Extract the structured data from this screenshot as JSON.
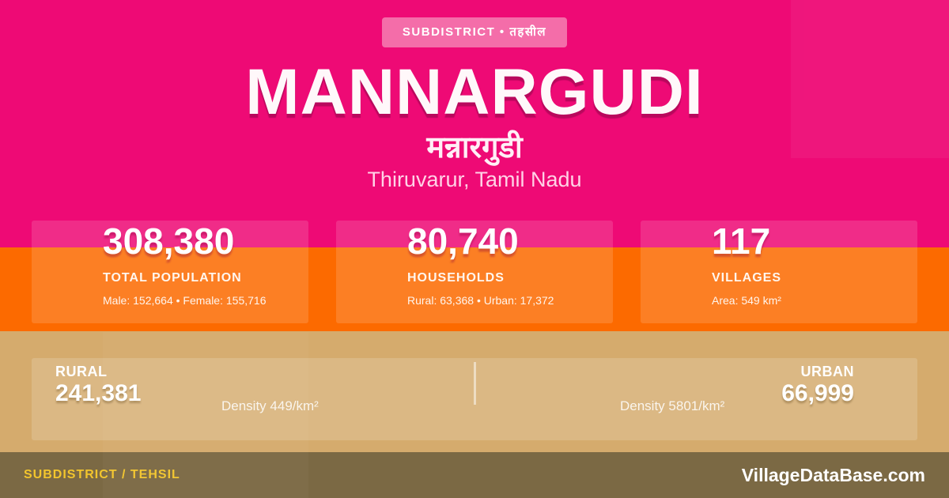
{
  "badge": {
    "label": "SUBDISTRICT • तहसील"
  },
  "header": {
    "title": "MANNARGUDI",
    "title_hindi": "मन्नारगुडी",
    "location": "Thiruvarur, Tamil Nadu"
  },
  "stats": [
    {
      "value": "308,380",
      "label": "TOTAL POPULATION",
      "detail": "Male: 152,664 • Female: 155,716"
    },
    {
      "value": "80,740",
      "label": "HOUSEHOLDS",
      "detail": "Rural: 63,368 • Urban: 17,372"
    },
    {
      "value": "117",
      "label": "VILLAGES",
      "detail": "Area: 549 km²"
    }
  ],
  "split": {
    "rural": {
      "label": "RURAL",
      "value": "241,381",
      "density": "Density 449/km²"
    },
    "urban": {
      "label": "URBAN",
      "value": "66,999",
      "density": "Density 5801/km²"
    }
  },
  "footer": {
    "left": "SUBDISTRICT / TEHSIL",
    "right": "VillageDataBase.com"
  },
  "colors": {
    "pink": "#EE0A75",
    "pink_card": "#F12F8A",
    "orange": "#FC6A00",
    "orange_card": "#FC8026",
    "tan": "#D5AB6D",
    "olive_footer": "#7B6944",
    "gold_text": "#F2C52D",
    "badge_bg": "#F46DA9",
    "title_shadow": "#96064C"
  }
}
